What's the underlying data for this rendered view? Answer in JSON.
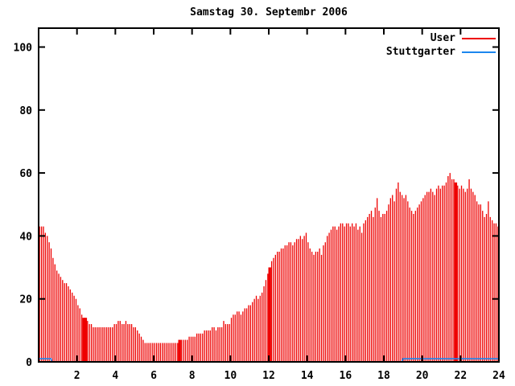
{
  "window": {
    "background": "#ffffff"
  },
  "chart_data": {
    "type": "bar",
    "title": "Samstag 30. Septembr 2006",
    "xlabel": "",
    "ylabel": "",
    "xlim": [
      0,
      24
    ],
    "ylim": [
      0,
      106
    ],
    "xticks": [
      2,
      4,
      6,
      8,
      10,
      12,
      14,
      16,
      18,
      20,
      22,
      24
    ],
    "yticks": [
      0,
      20,
      40,
      60,
      80,
      100
    ],
    "grid": false,
    "legend_position": "top-right",
    "x_start_hour": 0.05,
    "x_step_hours": 0.1,
    "series": [
      {
        "name": "User",
        "style": "impulses",
        "color": "#ee0000",
        "values": [
          43,
          43,
          43,
          41,
          40,
          38,
          36,
          33,
          31,
          29,
          28,
          27,
          26,
          25,
          25,
          24,
          23,
          22,
          21,
          20,
          18,
          17,
          15,
          14,
          14,
          13,
          12,
          12,
          11,
          11,
          11,
          11,
          11,
          11,
          11,
          11,
          11,
          11,
          11,
          12,
          12,
          13,
          13,
          12,
          12,
          13,
          12,
          12,
          12,
          11,
          11,
          10,
          9,
          8,
          7,
          6,
          6,
          6,
          6,
          6,
          6,
          6,
          6,
          6,
          6,
          6,
          6,
          6,
          6,
          6,
          6,
          6,
          6,
          7,
          7,
          7,
          7,
          7,
          8,
          8,
          8,
          8,
          9,
          9,
          9,
          9,
          10,
          10,
          10,
          10,
          11,
          11,
          10,
          11,
          11,
          11,
          13,
          12,
          12,
          12,
          14,
          15,
          15,
          16,
          16,
          15,
          16,
          17,
          17,
          18,
          18,
          19,
          20,
          21,
          20,
          21,
          22,
          24,
          26,
          28,
          30,
          32,
          33,
          34,
          35,
          35,
          36,
          36,
          37,
          37,
          38,
          38,
          37,
          38,
          39,
          39,
          40,
          39,
          40,
          41,
          38,
          36,
          35,
          34,
          35,
          35,
          36,
          34,
          37,
          38,
          40,
          41,
          42,
          43,
          43,
          42,
          43,
          44,
          44,
          43,
          44,
          44,
          43,
          44,
          43,
          44,
          42,
          43,
          41,
          44,
          45,
          46,
          47,
          48,
          46,
          49,
          52,
          48,
          46,
          47,
          47,
          48,
          50,
          52,
          53,
          51,
          55,
          57,
          54,
          53,
          52,
          53,
          51,
          49,
          48,
          47,
          48,
          49,
          50,
          51,
          52,
          53,
          54,
          54,
          55,
          54,
          53,
          55,
          56,
          55,
          56,
          56,
          57,
          59,
          60,
          58,
          58,
          57,
          56,
          55,
          56,
          55,
          54,
          55,
          58,
          55,
          54,
          53,
          51,
          50,
          50,
          48,
          46,
          47,
          51,
          46,
          45,
          44,
          44,
          43
        ]
      },
      {
        "name": "Stuttgarter",
        "style": "line",
        "color": "#1c86ee",
        "segments": [
          {
            "from_hour": 0.0,
            "to_hour": 0.65,
            "value": 1
          },
          {
            "from_hour": 0.7,
            "to_hour": 18.95,
            "value": 0
          },
          {
            "from_hour": 19.0,
            "to_hour": 24.0,
            "value": 1
          }
        ]
      }
    ],
    "wide_bar_indices": [
      23,
      24,
      73,
      120,
      217
    ]
  }
}
